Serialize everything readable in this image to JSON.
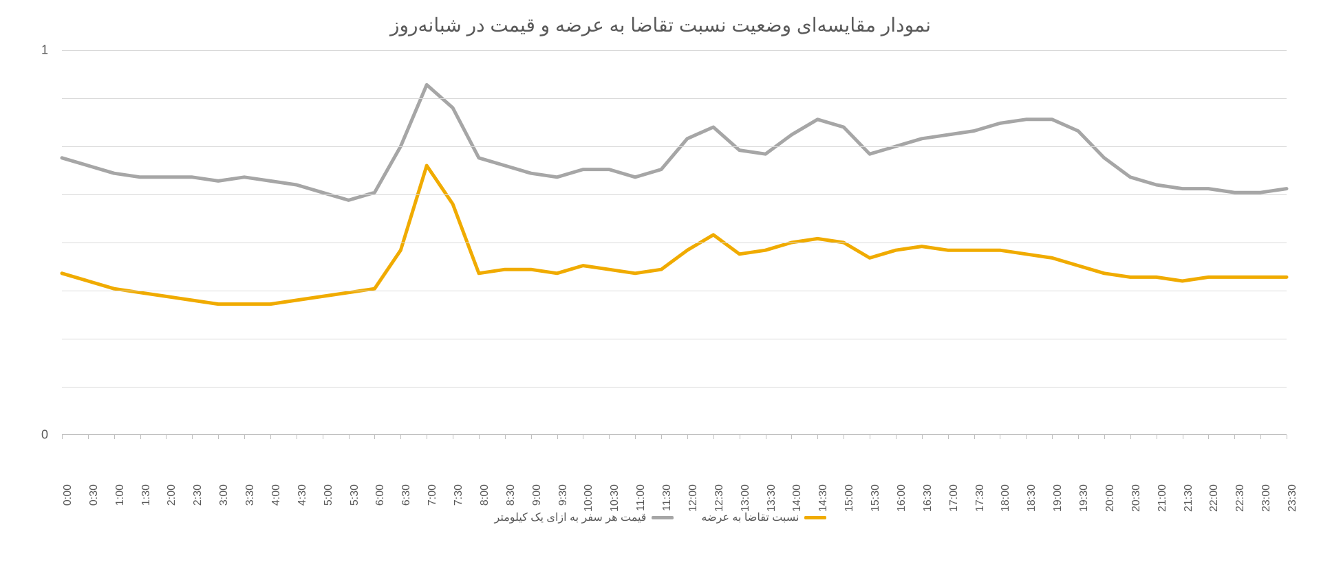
{
  "chart": {
    "type": "line",
    "title": "نمودار مقایسه‌ای وضعیت نسبت تقاضا به عرضه و قیمت در شبانه‌روز",
    "title_fontsize": 28,
    "title_color": "#595959",
    "background_color": "#ffffff",
    "grid_color": "#d9d9d9",
    "axis_color": "#bfbfbf",
    "tick_color": "#595959",
    "tick_fontsize": 16,
    "ylim": [
      0,
      1
    ],
    "y_ticks": [
      0,
      1
    ],
    "x_labels": [
      "0:00",
      "0:30",
      "1:00",
      "1:30",
      "2:00",
      "2:30",
      "3:00",
      "3:30",
      "4:00",
      "4:30",
      "5:00",
      "5:30",
      "6:00",
      "6:30",
      "7:00",
      "7:30",
      "8:00",
      "8:30",
      "9:00",
      "9:30",
      "10:00",
      "10:30",
      "11:00",
      "11:30",
      "12:00",
      "12:30",
      "13:00",
      "13:30",
      "14:00",
      "14:30",
      "15:00",
      "15:30",
      "16:00",
      "16:30",
      "17:00",
      "17:30",
      "18:00",
      "18:30",
      "19:00",
      "19:30",
      "20:00",
      "20:30",
      "21:00",
      "21:30",
      "22:00",
      "22:30",
      "23:00",
      "23:30"
    ],
    "series": [
      {
        "name": "نسبت تقاضا به عرضه",
        "color": "#f0ab00",
        "line_width": 5,
        "values": [
          0.42,
          0.4,
          0.38,
          0.37,
          0.36,
          0.35,
          0.34,
          0.34,
          0.34,
          0.35,
          0.36,
          0.37,
          0.38,
          0.48,
          0.7,
          0.6,
          0.42,
          0.43,
          0.43,
          0.42,
          0.44,
          0.43,
          0.42,
          0.43,
          0.48,
          0.52,
          0.47,
          0.48,
          0.5,
          0.51,
          0.5,
          0.46,
          0.48,
          0.49,
          0.48,
          0.48,
          0.48,
          0.47,
          0.46,
          0.44,
          0.42,
          0.41,
          0.41,
          0.4,
          0.41,
          0.41,
          0.41,
          0.41
        ]
      },
      {
        "name": "قیمت هر سفر به ازای یک کیلومتر",
        "color": "#a6a6a6",
        "line_width": 5,
        "values": [
          0.72,
          0.7,
          0.68,
          0.67,
          0.67,
          0.67,
          0.66,
          0.67,
          0.66,
          0.65,
          0.63,
          0.61,
          0.63,
          0.75,
          0.91,
          0.85,
          0.72,
          0.7,
          0.68,
          0.67,
          0.69,
          0.69,
          0.67,
          0.69,
          0.77,
          0.8,
          0.74,
          0.73,
          0.78,
          0.82,
          0.8,
          0.73,
          0.75,
          0.77,
          0.78,
          0.79,
          0.81,
          0.82,
          0.82,
          0.79,
          0.72,
          0.67,
          0.65,
          0.64,
          0.64,
          0.63,
          0.63,
          0.64
        ]
      }
    ],
    "legend": {
      "position": "bottom",
      "fontsize": 16,
      "text_color": "#595959"
    },
    "gridlines_y": [
      0.125,
      0.25,
      0.375,
      0.5,
      0.625,
      0.75,
      0.875,
      1.0
    ]
  }
}
